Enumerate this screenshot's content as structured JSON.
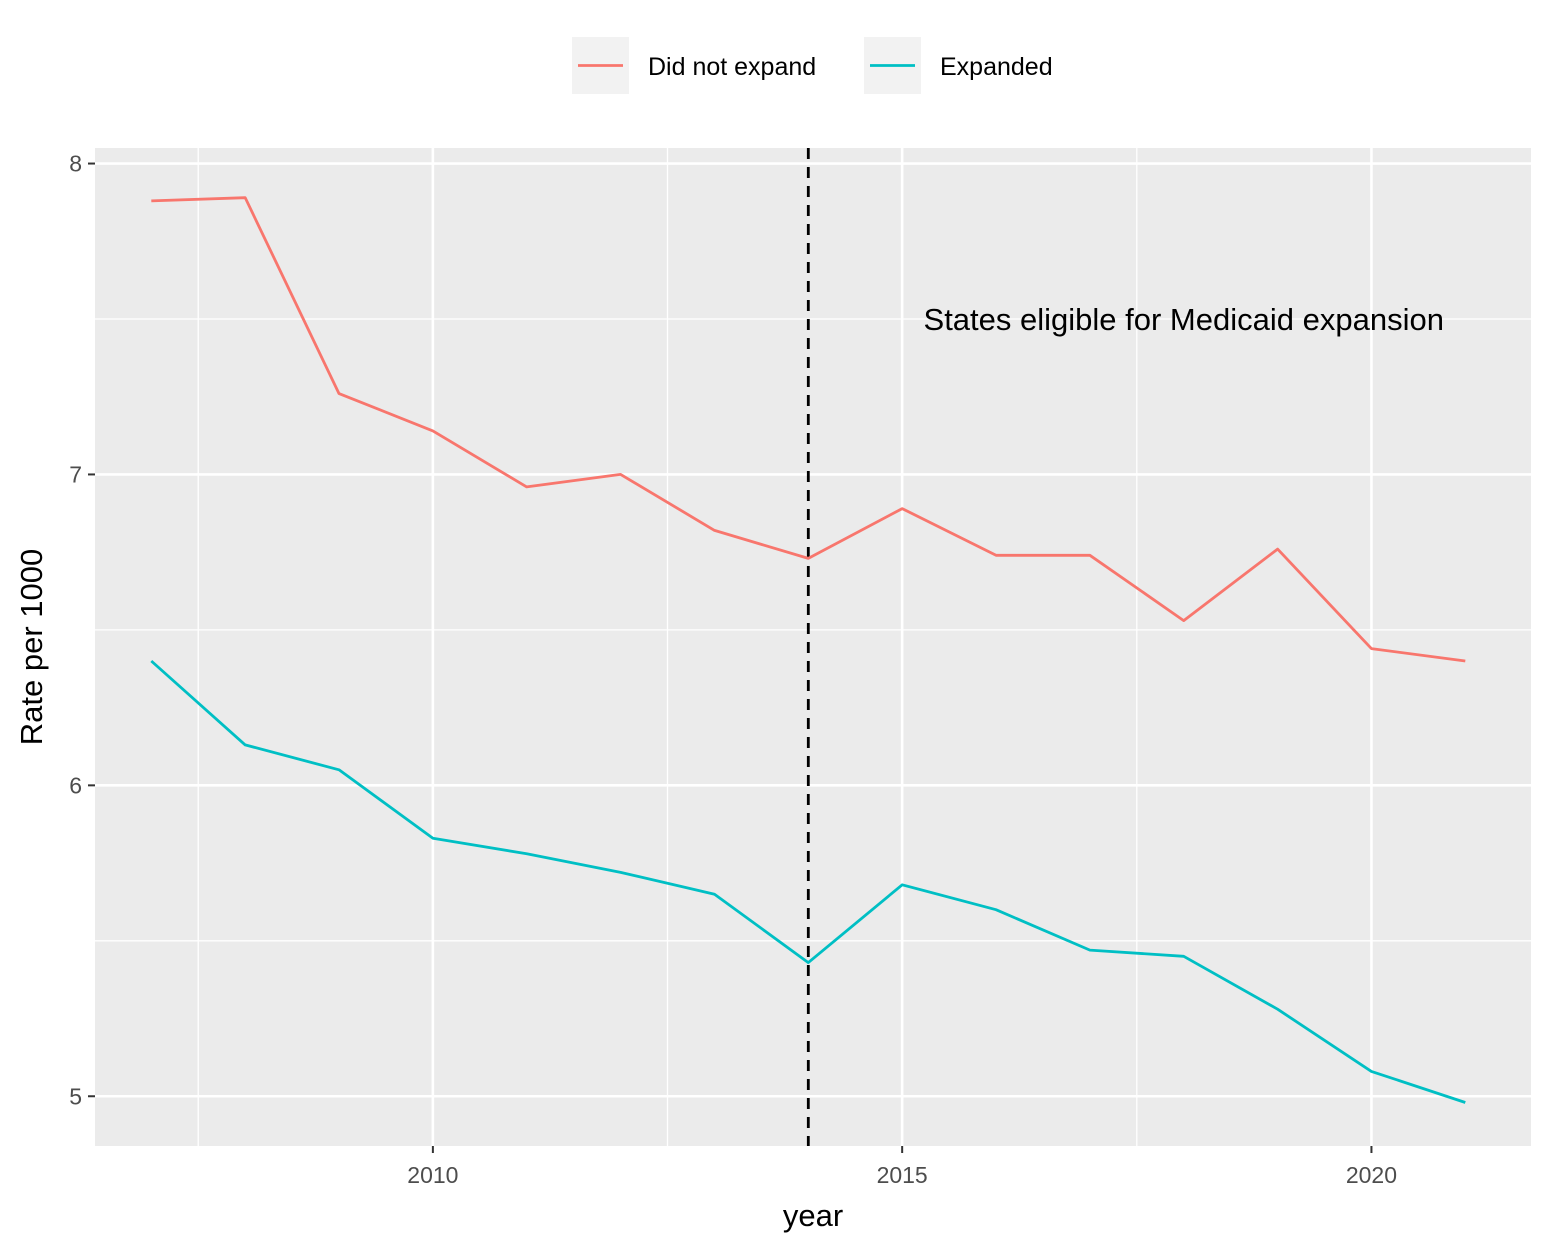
{
  "chart_data": {
    "type": "line",
    "title": "",
    "xlabel": "year",
    "ylabel": "Rate per 1000",
    "xlim": [
      2006.4,
      2021.7
    ],
    "ylim": [
      4.84,
      8.05
    ],
    "x_ticks": [
      2010,
      2015,
      2020
    ],
    "x_minor": [
      2007.5,
      2012.5,
      2017.5
    ],
    "y_ticks": [
      5,
      6,
      7,
      8
    ],
    "y_minor": [
      5.5,
      6.5,
      7.5
    ],
    "grid": true,
    "legend_position": "top",
    "vline": {
      "x": 2014,
      "style": "dashed",
      "color": "#000000"
    },
    "annotation": {
      "text": "States eligible for Medicaid expansion",
      "x": 2018,
      "y": 7.5
    },
    "series": [
      {
        "name": "Did not expand",
        "color": "#F8766D",
        "x": [
          2007,
          2008,
          2009,
          2010,
          2011,
          2012,
          2013,
          2014,
          2015,
          2016,
          2017,
          2018,
          2019,
          2020,
          2021
        ],
        "values": [
          7.88,
          7.89,
          7.26,
          7.14,
          6.96,
          7.0,
          6.82,
          6.73,
          6.89,
          6.74,
          6.74,
          6.53,
          6.76,
          6.44,
          6.4
        ]
      },
      {
        "name": "Expanded",
        "color": "#00BFC4",
        "x": [
          2007,
          2008,
          2009,
          2010,
          2011,
          2012,
          2013,
          2014,
          2015,
          2016,
          2017,
          2018,
          2019,
          2020,
          2021
        ],
        "values": [
          6.4,
          6.13,
          6.05,
          5.83,
          5.78,
          5.72,
          5.65,
          5.43,
          5.68,
          5.6,
          5.47,
          5.45,
          5.28,
          5.08,
          4.98
        ]
      }
    ]
  }
}
